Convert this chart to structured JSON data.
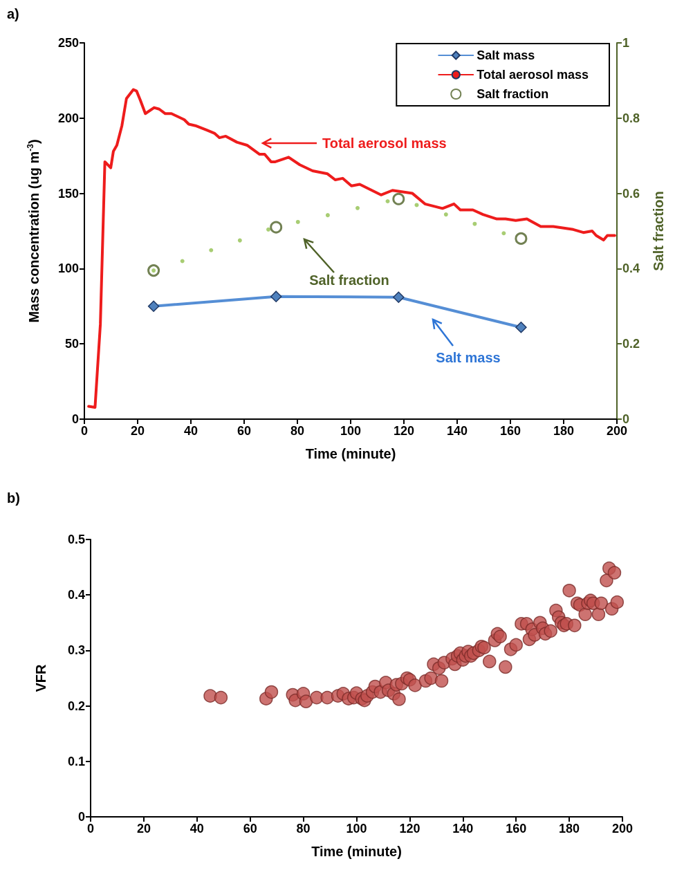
{
  "chart_data": [
    {
      "type": "line",
      "annotations": [
        "a)",
        "Total aerosol mass",
        "Salt fraction",
        "Salt mass"
      ],
      "xlabel": "Time (minute)",
      "ylabel": "Mass concentration (ug m$^{-3}$)",
      "y2label": "Salt fraction",
      "xlim": [
        0,
        200
      ],
      "xticks": [
        0,
        20,
        40,
        60,
        80,
        100,
        120,
        140,
        160,
        180,
        200
      ],
      "ylim": [
        0,
        250
      ],
      "yticks": [
        0,
        50,
        100,
        150,
        200,
        250
      ],
      "y2lim": [
        0,
        1
      ],
      "y2ticks": [
        0,
        0.2,
        0.4,
        0.6,
        0.8,
        1
      ],
      "legend": "top right",
      "series": [
        {
          "name": "Salt mass",
          "color": "#558ed5",
          "marker": "diamond",
          "x": [
            26,
            72,
            118,
            164
          ],
          "values": [
            75,
            81.5,
            81,
            61
          ]
        },
        {
          "name": "Total aerosol mass",
          "color": "#ee1c1c",
          "marker": "none",
          "x": [
            1.6,
            4,
            6,
            7.7,
            9.9,
            10.9,
            12.2,
            14.1,
            15.8,
            18.4,
            19.6,
            21,
            22.9,
            26.2,
            28.1,
            30.4,
            32.7,
            37.5,
            39.2,
            41.7,
            46,
            48.8,
            50.7,
            53.1,
            57.3,
            61.1,
            65.8,
            67.7,
            70.1,
            71.7,
            76.7,
            80.9,
            85.7,
            91.3,
            94.2,
            97,
            100.3,
            103.4,
            111.4,
            115.7,
            123.2,
            127.9,
            134.5,
            138.8,
            141.2,
            145.9,
            149.7,
            154.9,
            158.2,
            162,
            166.2,
            171.4,
            176.1,
            183.6,
            187.4,
            190.7,
            192.2,
            195,
            196.4,
            199.2
          ],
          "values": [
            8.5,
            7.8,
            63,
            171,
            167,
            178,
            182,
            195,
            213,
            219,
            218,
            212,
            203,
            207,
            206,
            203,
            203,
            199,
            196,
            195,
            192,
            190,
            187,
            188,
            184,
            182,
            176,
            176,
            171,
            171,
            174,
            169,
            165,
            163,
            159,
            160,
            155,
            156,
            149,
            152,
            150,
            143,
            140,
            143,
            139,
            139,
            136,
            133,
            133,
            132,
            133,
            128,
            128,
            126,
            124,
            125,
            122,
            119,
            122,
            122
          ]
        },
        {
          "type": "scatter",
          "color": "#92c050",
          "marker": "circle",
          "axis": "y2",
          "x": [
            26,
            36.8,
            47.6,
            58.4,
            69.1,
            80.2,
            91.4,
            102.6,
            113.9,
            124.8,
            135.8,
            146.6,
            157.5
          ],
          "values": [
            0.395,
            0.42,
            0.449,
            0.475,
            0.504,
            0.524,
            0.542,
            0.561,
            0.579,
            0.569,
            0.544,
            0.519,
            0.494
          ]
        },
        {
          "type": "scatter",
          "name": "Salt fraction",
          "color": "#4f6228",
          "marker": "circle",
          "axis": "y2",
          "x": [
            26,
            72,
            118,
            164
          ],
          "values": [
            0.395,
            0.51,
            0.585,
            0.48
          ]
        }
      ]
    },
    {
      "type": "scatter",
      "annotations": [
        "b)"
      ],
      "xlabel": "Time (minute)",
      "ylabel": "VFR",
      "xlim": [
        0,
        200
      ],
      "xticks": [
        0,
        20,
        40,
        60,
        80,
        100,
        120,
        140,
        160,
        180,
        200
      ],
      "ylim": [
        0,
        0.5
      ],
      "yticks": [
        0,
        0.1,
        0.2,
        0.3,
        0.4,
        0.5
      ],
      "color": "#c0504d",
      "marker": "circle",
      "x": [
        45,
        49,
        66,
        68,
        76,
        77,
        80,
        81,
        85,
        89,
        93,
        95,
        97,
        99,
        100,
        102,
        103,
        104,
        106,
        107,
        109,
        111,
        112,
        114,
        115,
        116,
        117,
        119,
        120,
        122,
        126,
        128,
        129,
        131,
        132,
        133,
        136,
        137,
        138,
        139,
        140,
        141,
        142,
        143,
        144,
        146,
        147,
        148,
        150,
        152,
        153,
        154,
        156,
        158,
        160,
        162,
        164,
        165,
        166,
        167,
        169,
        170,
        171,
        173,
        175,
        176,
        177,
        178,
        179,
        180,
        182,
        183,
        184,
        186,
        187,
        188,
        189,
        191,
        192,
        194,
        195,
        196,
        197,
        198
      ],
      "values": [
        0.218,
        0.215,
        0.213,
        0.225,
        0.22,
        0.21,
        0.222,
        0.208,
        0.215,
        0.215,
        0.218,
        0.222,
        0.213,
        0.215,
        0.223,
        0.213,
        0.21,
        0.218,
        0.225,
        0.235,
        0.225,
        0.242,
        0.228,
        0.222,
        0.238,
        0.212,
        0.24,
        0.25,
        0.247,
        0.237,
        0.245,
        0.25,
        0.275,
        0.268,
        0.245,
        0.278,
        0.285,
        0.275,
        0.29,
        0.295,
        0.283,
        0.29,
        0.298,
        0.29,
        0.295,
        0.3,
        0.307,
        0.305,
        0.28,
        0.318,
        0.33,
        0.325,
        0.27,
        0.302,
        0.31,
        0.348,
        0.348,
        0.32,
        0.338,
        0.328,
        0.35,
        0.34,
        0.33,
        0.335,
        0.372,
        0.36,
        0.35,
        0.345,
        0.348,
        0.408,
        0.345,
        0.385,
        0.382,
        0.365,
        0.385,
        0.39,
        0.385,
        0.365,
        0.385,
        0.426,
        0.448,
        0.375,
        0.44,
        0.387
      ]
    }
  ]
}
